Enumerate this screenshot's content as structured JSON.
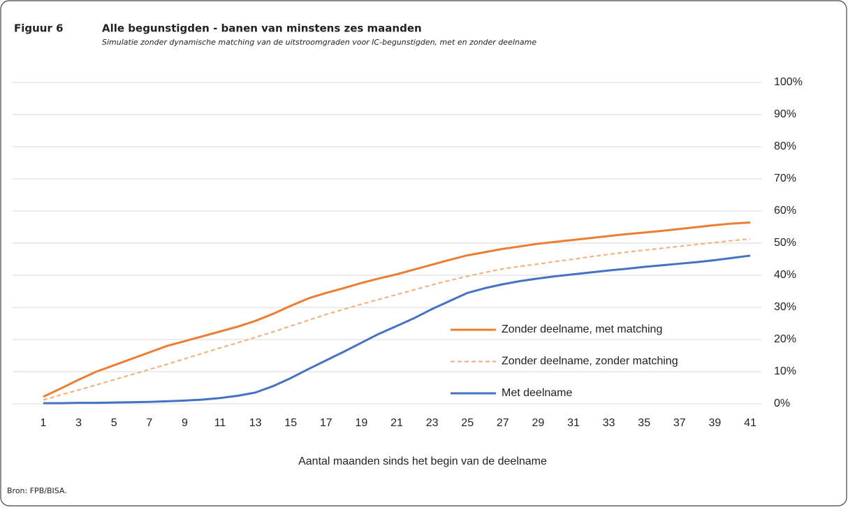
{
  "chart_data": {
    "type": "line",
    "figure_label": "Figuur 6",
    "title": "Alle begunstigden - banen van minstens zes maanden",
    "subtitle": "Simulatie zonder dynamische matching van de uitstroomgraden voor IC-begunstigden, met en zonder deelname",
    "xlabel": "Aantal maanden sinds het begin van de deelname",
    "source": "Bron: FPB/BISA.",
    "x": [
      1,
      2,
      3,
      4,
      5,
      6,
      7,
      8,
      9,
      10,
      11,
      12,
      13,
      14,
      15,
      16,
      17,
      18,
      19,
      20,
      21,
      22,
      23,
      24,
      25,
      26,
      27,
      28,
      29,
      30,
      31,
      32,
      33,
      34,
      35,
      36,
      37,
      38,
      39,
      40,
      41
    ],
    "xlim": [
      1,
      41
    ],
    "xticks": [
      1,
      3,
      5,
      7,
      9,
      11,
      13,
      15,
      17,
      19,
      21,
      23,
      25,
      27,
      29,
      31,
      33,
      35,
      37,
      39,
      41
    ],
    "ylim": [
      0,
      100
    ],
    "yticks": [
      {
        "value": 0,
        "label": "0%"
      },
      {
        "value": 10,
        "label": "10%"
      },
      {
        "value": 20,
        "label": "20%"
      },
      {
        "value": 30,
        "label": "30%"
      },
      {
        "value": 40,
        "label": "40%"
      },
      {
        "value": 50,
        "label": "50%"
      },
      {
        "value": 60,
        "label": "60%"
      },
      {
        "value": 70,
        "label": "70%"
      },
      {
        "value": 80,
        "label": "80%"
      },
      {
        "value": 90,
        "label": "90%"
      },
      {
        "value": 100,
        "label": "100%"
      }
    ],
    "grid": true,
    "legend": "right",
    "series": [
      {
        "name": "Zonder deelname, met matching",
        "color": "#ed7d31",
        "dash": false,
        "values": [
          2.2,
          4.8,
          7.5,
          10,
          12,
          14,
          16,
          18,
          19.5,
          21,
          22.5,
          24,
          25.8,
          28,
          30.5,
          32.8,
          34.5,
          36,
          37.6,
          39,
          40.3,
          41.8,
          43.3,
          44.8,
          46.2,
          47.2,
          48.2,
          49,
          49.8,
          50.4,
          51,
          51.6,
          52.2,
          52.8,
          53.3,
          53.8,
          54.4,
          55,
          55.6,
          56.1,
          56.4
        ]
      },
      {
        "name": "Zonder deelname, zonder matching",
        "color": "#f4b183",
        "dash": true,
        "values": [
          1.2,
          2.8,
          4.3,
          5.9,
          7.5,
          9.1,
          10.7,
          12.3,
          14,
          15.7,
          17.4,
          19,
          20.7,
          22.4,
          24.2,
          26,
          27.8,
          29.4,
          31,
          32.5,
          34,
          35.5,
          37,
          38.4,
          39.7,
          40.9,
          42,
          42.8,
          43.5,
          44.3,
          45,
          45.8,
          46.5,
          47.2,
          47.8,
          48.4,
          49,
          49.6,
          50.2,
          50.8,
          51.3
        ]
      },
      {
        "name": "Met deelname",
        "color": "#4472c4",
        "dash": false,
        "values": [
          0.2,
          0.2,
          0.3,
          0.3,
          0.4,
          0.5,
          0.6,
          0.8,
          1,
          1.3,
          1.8,
          2.5,
          3.5,
          5.5,
          8,
          10.8,
          13.5,
          16.2,
          19,
          21.8,
          24.2,
          26.7,
          29.5,
          32,
          34.5,
          36,
          37.2,
          38.2,
          39,
          39.7,
          40.3,
          40.9,
          41.5,
          42,
          42.6,
          43.1,
          43.6,
          44.1,
          44.7,
          45.4,
          46.1
        ]
      }
    ]
  }
}
